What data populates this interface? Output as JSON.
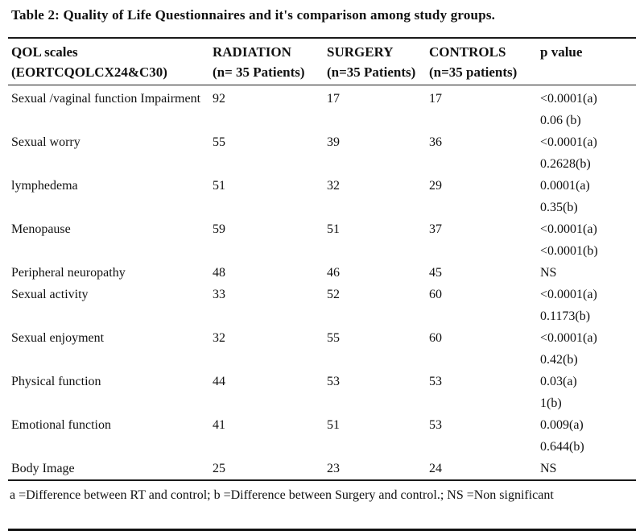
{
  "title": "Table 2: Quality of Life Questionnaires and it's comparison among study groups.",
  "table": {
    "columns": [
      {
        "line1": "QOL scales",
        "line2": "(EORTCQOLCX24&C30)"
      },
      {
        "line1": "RADIATION",
        "line2": "(n= 35 Patients)"
      },
      {
        "line1": "SURGERY",
        "line2": "(n=35 Patients)"
      },
      {
        "line1": "CONTROLS",
        "line2": "(n=35 patients)"
      },
      {
        "line1": "p value",
        "line2": ""
      }
    ],
    "rows": [
      {
        "scale": "Sexual /vaginal function Impairment",
        "radiation": "92",
        "surgery": "17",
        "controls": "17",
        "p_values": [
          "<0.0001(a)",
          "0.06 (b)"
        ]
      },
      {
        "scale": "Sexual worry",
        "radiation": "55",
        "surgery": "39",
        "controls": "36",
        "p_values": [
          "<0.0001(a)",
          "0.2628(b)"
        ]
      },
      {
        "scale": "lymphedema",
        "radiation": "51",
        "surgery": "32",
        "controls": "29",
        "p_values": [
          "0.0001(a)",
          "0.35(b)"
        ]
      },
      {
        "scale": "Menopause",
        "radiation": "59",
        "surgery": "51",
        "controls": "37",
        "p_values": [
          "<0.0001(a)",
          "<0.0001(b)"
        ]
      },
      {
        "scale": "Peripheral neuropathy",
        "radiation": "48",
        "surgery": "46",
        "controls": "45",
        "p_values": [
          "NS"
        ]
      },
      {
        "scale": "Sexual activity",
        "radiation": "33",
        "surgery": "52",
        "controls": "60",
        "p_values": [
          "<0.0001(a)",
          "0.1173(b)"
        ]
      },
      {
        "scale": "Sexual enjoyment",
        "radiation": "32",
        "surgery": "55",
        "controls": "60",
        "p_values": [
          "<0.0001(a)",
          "0.42(b)"
        ]
      },
      {
        "scale": "Physical function",
        "radiation": "44",
        "surgery": "53",
        "controls": "53",
        "p_values": [
          "0.03(a)",
          "1(b)"
        ]
      },
      {
        "scale": "Emotional function",
        "radiation": "41",
        "surgery": "51",
        "controls": "53",
        "p_values": [
          "0.009(a)",
          "0.644(b)"
        ]
      },
      {
        "scale": "Body Image",
        "radiation": "25",
        "surgery": "23",
        "controls": "24",
        "p_values": [
          "NS"
        ]
      }
    ]
  },
  "footnote": "a =Difference between RT and control; b =Difference between Surgery and control.; NS =Non significant"
}
